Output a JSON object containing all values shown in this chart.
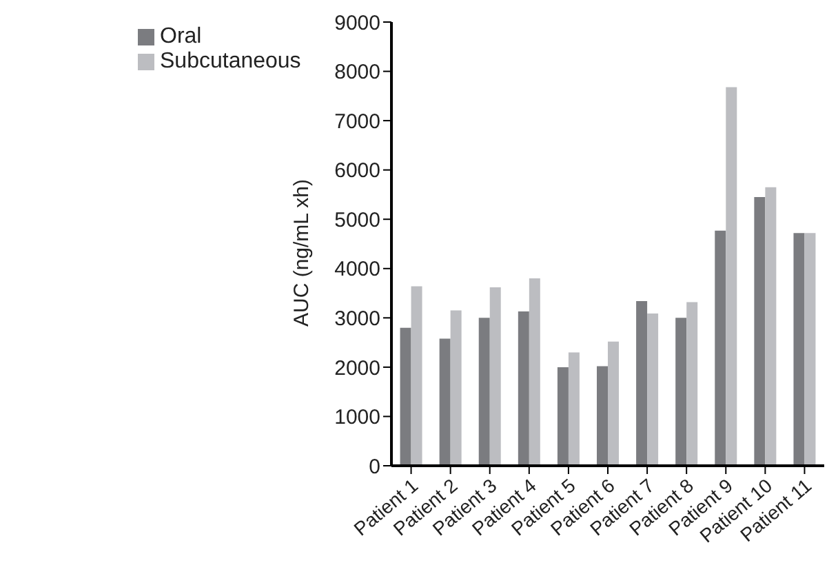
{
  "chart_data": {
    "type": "bar",
    "ylabel": "AUC (ng/mL xh)",
    "categories": [
      "Patient 1",
      "Patient 2",
      "Patient 3",
      "Patient 4",
      "Patient 5",
      "Patient 6",
      "Patient 7",
      "Patient 8",
      "Patient 9",
      "Patient 10",
      "Patient 11"
    ],
    "series": [
      {
        "name": "Oral",
        "color": "#7b7c80",
        "values": [
          2800,
          2580,
          3000,
          3130,
          2000,
          2020,
          3340,
          3000,
          4770,
          5450,
          4720
        ]
      },
      {
        "name": "Subcutaneous",
        "color": "#bcbdc1",
        "values": [
          3640,
          3150,
          3620,
          3800,
          2300,
          2520,
          3090,
          3320,
          7680,
          5650,
          4720
        ]
      }
    ],
    "ylim": [
      0,
      9000
    ],
    "yticks": [
      0,
      1000,
      2000,
      3000,
      4000,
      5000,
      6000,
      7000,
      8000,
      9000
    ],
    "grid": false,
    "legend": "top left"
  }
}
